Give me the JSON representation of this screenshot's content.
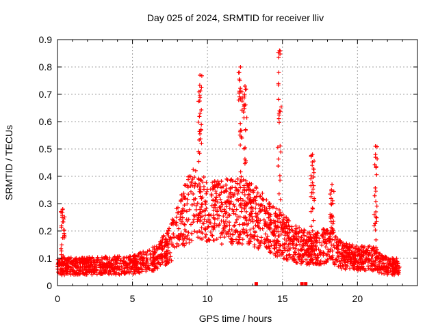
{
  "chart_data": {
    "type": "scatter",
    "title": "Day 025 of 2024, SRMTID for receiver lliv",
    "xlabel": "GPS time / hours",
    "ylabel": "SRMTID / TECUs",
    "xlim": [
      0,
      24
    ],
    "ylim": [
      0,
      0.9
    ],
    "xticks": [
      0,
      5,
      10,
      15,
      20
    ],
    "xtick_labels": [
      "0",
      "5",
      "10",
      "15",
      "20"
    ],
    "yticks": [
      0,
      0.1,
      0.2,
      0.3,
      0.4,
      0.5,
      0.6,
      0.7,
      0.8,
      0.9
    ],
    "ytick_labels": [
      "0",
      "0.1",
      "0.2",
      "0.3",
      "0.4",
      "0.5",
      "0.6",
      "0.7",
      "0.8",
      "0.9"
    ],
    "grid": true,
    "series": [
      {
        "name": "SRMTID",
        "marker": "+",
        "color": "#ff0000",
        "x_range": [
          0,
          22.8
        ],
        "baseline_profile": [
          [
            0,
            0.07
          ],
          [
            5,
            0.075
          ],
          [
            6.5,
            0.1
          ],
          [
            7.5,
            0.15
          ],
          [
            8,
            0.22
          ],
          [
            9,
            0.3
          ],
          [
            10,
            0.27
          ],
          [
            11,
            0.27
          ],
          [
            12,
            0.27
          ],
          [
            13,
            0.26
          ],
          [
            14,
            0.22
          ],
          [
            15,
            0.18
          ],
          [
            16,
            0.15
          ],
          [
            17,
            0.13
          ],
          [
            18,
            0.15
          ],
          [
            19,
            0.11
          ],
          [
            20,
            0.1
          ],
          [
            21,
            0.1
          ],
          [
            22,
            0.07
          ],
          [
            22.8,
            0.07
          ]
        ],
        "peaks": [
          {
            "x": 0.35,
            "y": 0.28
          },
          {
            "x": 9.5,
            "y": 0.77
          },
          {
            "x": 12.2,
            "y": 0.8
          },
          {
            "x": 12.5,
            "y": 0.73
          },
          {
            "x": 14.8,
            "y": 0.86
          },
          {
            "x": 17.0,
            "y": 0.48
          },
          {
            "x": 18.3,
            "y": 0.37
          },
          {
            "x": 21.2,
            "y": 0.51
          }
        ],
        "zero_markers_x": [
          13.25,
          16.3,
          16.55
        ]
      }
    ]
  }
}
